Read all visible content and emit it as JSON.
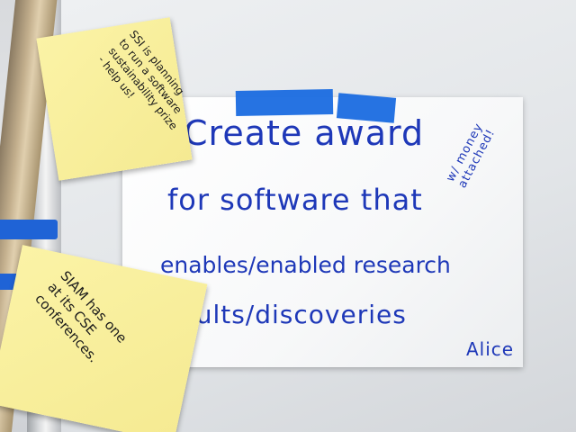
{
  "main_sheet": {
    "line1": "Create award",
    "line2": "for software that",
    "line3": "enables/enabled research",
    "line4": "results/discoveries",
    "side_note": "w/ money\nattached!",
    "signature": "Alice"
  },
  "sticky_top": {
    "text": "SSI is planning\nto run a software\nsustainability prize\n- help us!"
  },
  "sticky_bottom": {
    "text": "SIAM has one\nat its CSE\nconferences."
  },
  "colors": {
    "marker_blue": "#1e38b8",
    "tape_blue": "#1a6be0",
    "sticky_yellow": "#f8ef9c"
  }
}
